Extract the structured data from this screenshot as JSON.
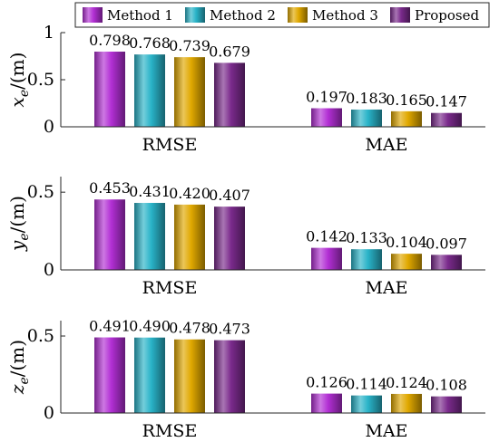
{
  "chart_data": {
    "type": "bar",
    "legend": {
      "placement": "top",
      "entries": [
        "Method 1",
        "Method 2",
        "Method 3",
        "Proposed"
      ]
    },
    "colors": [
      "#B22FD4",
      "#29B3C8",
      "#E0A800",
      "#7A2A8C"
    ],
    "categories": [
      "RMSE",
      "MAE"
    ],
    "panels": [
      {
        "ylabel_var": "x",
        "ylabel_sub": "e",
        "ylabel_unit": "/(m)",
        "ylim": [
          0,
          1
        ],
        "yticks": [
          0,
          0.5,
          1
        ],
        "ytick_labels": [
          "0",
          "0.5",
          "1"
        ],
        "series": [
          {
            "name": "Method 1",
            "values": [
              0.798,
              0.197
            ],
            "labels": [
              "0.798",
              "0.197"
            ]
          },
          {
            "name": "Method 2",
            "values": [
              0.768,
              0.183
            ],
            "labels": [
              "0.768",
              "0.183"
            ]
          },
          {
            "name": "Method 3",
            "values": [
              0.739,
              0.165
            ],
            "labels": [
              "0.739",
              "0.165"
            ]
          },
          {
            "name": "Proposed",
            "values": [
              0.679,
              0.147
            ],
            "labels": [
              "0.679",
              "0.147"
            ]
          }
        ]
      },
      {
        "ylabel_var": "y",
        "ylabel_sub": "e",
        "ylabel_unit": "/(m)",
        "ylim": [
          0,
          0.6
        ],
        "yticks": [
          0,
          0.5
        ],
        "ytick_labels": [
          "0",
          "0.5"
        ],
        "series": [
          {
            "name": "Method 1",
            "values": [
              0.453,
              0.142
            ],
            "labels": [
              "0.453",
              "0.142"
            ]
          },
          {
            "name": "Method 2",
            "values": [
              0.431,
              0.133
            ],
            "labels": [
              "0.431",
              "0.133"
            ]
          },
          {
            "name": "Method 3",
            "values": [
              0.42,
              0.104
            ],
            "labels": [
              "0.420",
              "0.104"
            ]
          },
          {
            "name": "Proposed",
            "values": [
              0.407,
              0.097
            ],
            "labels": [
              "0.407",
              "0.097"
            ]
          }
        ]
      },
      {
        "ylabel_var": "z",
        "ylabel_sub": "e",
        "ylabel_unit": "/(m)",
        "ylim": [
          0,
          0.6
        ],
        "yticks": [
          0,
          0.5
        ],
        "ytick_labels": [
          "0",
          "0.5"
        ],
        "series": [
          {
            "name": "Method 1",
            "values": [
              0.491,
              0.126
            ],
            "labels": [
              "0.491",
              "0.126"
            ]
          },
          {
            "name": "Method 2",
            "values": [
              0.49,
              0.114
            ],
            "labels": [
              "0.490",
              "0.114"
            ]
          },
          {
            "name": "Method 3",
            "values": [
              0.478,
              0.124
            ],
            "labels": [
              "0.478",
              "0.124"
            ]
          },
          {
            "name": "Proposed",
            "values": [
              0.473,
              0.108
            ],
            "labels": [
              "0.473",
              "0.108"
            ]
          }
        ]
      }
    ]
  }
}
